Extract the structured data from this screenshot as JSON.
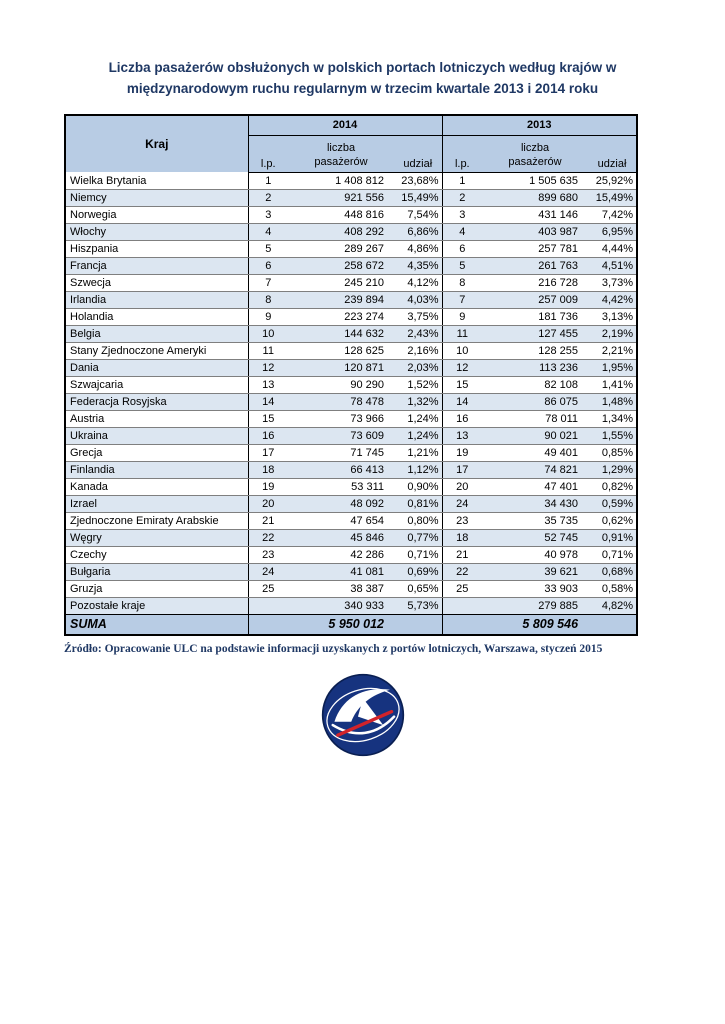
{
  "title": "Liczba pasażerów obsłużonych w polskich portach lotniczych według krajów w międzynarodowym ruchu regularnym w trzecim kwartale 2013 i 2014 roku",
  "table": {
    "headers": {
      "kraj": "Kraj",
      "year_2014": "2014",
      "year_2013": "2013",
      "lp": "l.p.",
      "liczba_line1": "liczba",
      "liczba_line2": "pasażerów",
      "udzial": "udział"
    },
    "rows": [
      {
        "kraj": "Wielka Brytania",
        "lp14": "1",
        "liczba14": "1 408 812",
        "udzial14": "23,68%",
        "lp13": "1",
        "liczba13": "1 505 635",
        "udzial13": "25,92%"
      },
      {
        "kraj": "Niemcy",
        "lp14": "2",
        "liczba14": "921 556",
        "udzial14": "15,49%",
        "lp13": "2",
        "liczba13": "899 680",
        "udzial13": "15,49%"
      },
      {
        "kraj": "Norwegia",
        "lp14": "3",
        "liczba14": "448 816",
        "udzial14": "7,54%",
        "lp13": "3",
        "liczba13": "431 146",
        "udzial13": "7,42%"
      },
      {
        "kraj": "Włochy",
        "lp14": "4",
        "liczba14": "408 292",
        "udzial14": "6,86%",
        "lp13": "4",
        "liczba13": "403 987",
        "udzial13": "6,95%"
      },
      {
        "kraj": "Hiszpania",
        "lp14": "5",
        "liczba14": "289 267",
        "udzial14": "4,86%",
        "lp13": "6",
        "liczba13": "257 781",
        "udzial13": "4,44%"
      },
      {
        "kraj": "Francja",
        "lp14": "6",
        "liczba14": "258 672",
        "udzial14": "4,35%",
        "lp13": "5",
        "liczba13": "261 763",
        "udzial13": "4,51%"
      },
      {
        "kraj": "Szwecja",
        "lp14": "7",
        "liczba14": "245 210",
        "udzial14": "4,12%",
        "lp13": "8",
        "liczba13": "216 728",
        "udzial13": "3,73%"
      },
      {
        "kraj": "Irlandia",
        "lp14": "8",
        "liczba14": "239 894",
        "udzial14": "4,03%",
        "lp13": "7",
        "liczba13": "257 009",
        "udzial13": "4,42%"
      },
      {
        "kraj": "Holandia",
        "lp14": "9",
        "liczba14": "223 274",
        "udzial14": "3,75%",
        "lp13": "9",
        "liczba13": "181 736",
        "udzial13": "3,13%"
      },
      {
        "kraj": "Belgia",
        "lp14": "10",
        "liczba14": "144 632",
        "udzial14": "2,43%",
        "lp13": "11",
        "liczba13": "127 455",
        "udzial13": "2,19%"
      },
      {
        "kraj": "Stany Zjednoczone Ameryki",
        "lp14": "11",
        "liczba14": "128 625",
        "udzial14": "2,16%",
        "lp13": "10",
        "liczba13": "128 255",
        "udzial13": "2,21%"
      },
      {
        "kraj": "Dania",
        "lp14": "12",
        "liczba14": "120 871",
        "udzial14": "2,03%",
        "lp13": "12",
        "liczba13": "113 236",
        "udzial13": "1,95%"
      },
      {
        "kraj": "Szwajcaria",
        "lp14": "13",
        "liczba14": "90 290",
        "udzial14": "1,52%",
        "lp13": "15",
        "liczba13": "82 108",
        "udzial13": "1,41%"
      },
      {
        "kraj": "Federacja Rosyjska",
        "lp14": "14",
        "liczba14": "78 478",
        "udzial14": "1,32%",
        "lp13": "14",
        "liczba13": "86 075",
        "udzial13": "1,48%"
      },
      {
        "kraj": "Austria",
        "lp14": "15",
        "liczba14": "73 966",
        "udzial14": "1,24%",
        "lp13": "16",
        "liczba13": "78 011",
        "udzial13": "1,34%"
      },
      {
        "kraj": "Ukraina",
        "lp14": "16",
        "liczba14": "73 609",
        "udzial14": "1,24%",
        "lp13": "13",
        "liczba13": "90 021",
        "udzial13": "1,55%"
      },
      {
        "kraj": "Grecja",
        "lp14": "17",
        "liczba14": "71 745",
        "udzial14": "1,21%",
        "lp13": "19",
        "liczba13": "49 401",
        "udzial13": "0,85%"
      },
      {
        "kraj": "Finlandia",
        "lp14": "18",
        "liczba14": "66 413",
        "udzial14": "1,12%",
        "lp13": "17",
        "liczba13": "74 821",
        "udzial13": "1,29%"
      },
      {
        "kraj": "Kanada",
        "lp14": "19",
        "liczba14": "53 311",
        "udzial14": "0,90%",
        "lp13": "20",
        "liczba13": "47 401",
        "udzial13": "0,82%"
      },
      {
        "kraj": "Izrael",
        "lp14": "20",
        "liczba14": "48 092",
        "udzial14": "0,81%",
        "lp13": "24",
        "liczba13": "34 430",
        "udzial13": "0,59%"
      },
      {
        "kraj": "Zjednoczone Emiraty Arabskie",
        "lp14": "21",
        "liczba14": "47 654",
        "udzial14": "0,80%",
        "lp13": "23",
        "liczba13": "35 735",
        "udzial13": "0,62%"
      },
      {
        "kraj": "Węgry",
        "lp14": "22",
        "liczba14": "45 846",
        "udzial14": "0,77%",
        "lp13": "18",
        "liczba13": "52 745",
        "udzial13": "0,91%"
      },
      {
        "kraj": "Czechy",
        "lp14": "23",
        "liczba14": "42 286",
        "udzial14": "0,71%",
        "lp13": "21",
        "liczba13": "40 978",
        "udzial13": "0,71%"
      },
      {
        "kraj": "Bułgaria",
        "lp14": "24",
        "liczba14": "41 081",
        "udzial14": "0,69%",
        "lp13": "22",
        "liczba13": "39 621",
        "udzial13": "0,68%"
      },
      {
        "kraj": "Gruzja",
        "lp14": "25",
        "liczba14": "38 387",
        "udzial14": "0,65%",
        "lp13": "25",
        "liczba13": "33 903",
        "udzial13": "0,58%"
      }
    ],
    "pozostale": {
      "kraj": "Pozostałe kraje",
      "liczba14": "340 933",
      "udzial14": "5,73%",
      "liczba13": "279 885",
      "udzial13": "4,82%"
    },
    "suma": {
      "kraj": "SUMA",
      "liczba14": "5 950 012",
      "liczba13": "5 809 546"
    }
  },
  "source": "Źródło: Opracowanie ULC na podstawie informacji uzyskanych z portów lotniczych, Warszawa, styczeń 2015",
  "colors": {
    "title": "#1F3864",
    "header_bg": "#B8CCE4",
    "row_alt_bg": "#DCE6F1",
    "suma_bg": "#B8CCE4",
    "grid": "#7F7F7F",
    "border": "#000000",
    "logo_blue": "#16337F",
    "logo_red": "#D2232A"
  }
}
